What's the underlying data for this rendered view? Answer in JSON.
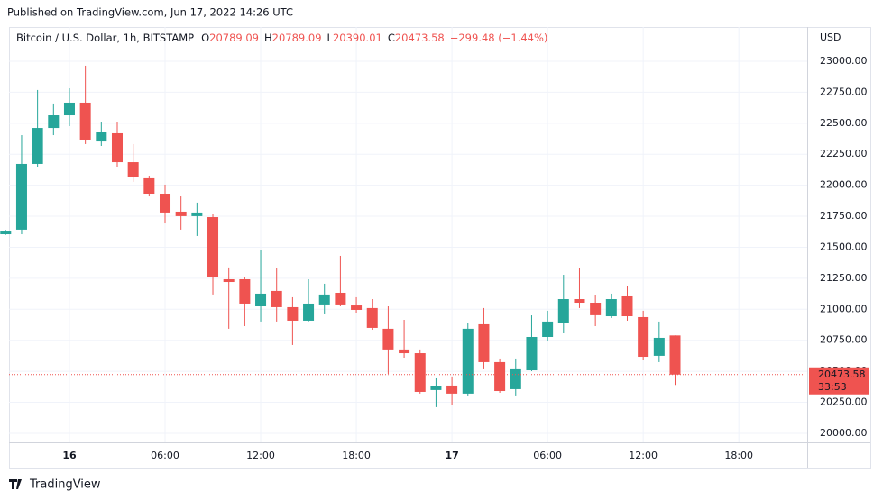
{
  "published": "Published on TradingView.com, Jun 17, 2022 14:26 UTC",
  "brand": "TradingView",
  "chart_data": {
    "type": "candlestick",
    "title": "Bitcoin / U.S. Dollar, 1h, BITSTAMP",
    "header": {
      "o_label": "O",
      "open": "20789.09",
      "h_label": "H",
      "high": "20789.09",
      "l_label": "L",
      "low": "20390.01",
      "c_label": "C",
      "close": "20473.58",
      "change": "−299.48 (−1.44%)"
    },
    "currency": "USD",
    "last_price_label": "20473.58",
    "countdown": "33:53",
    "up_color": "#26a69a",
    "down_color": "#ef5350",
    "x": [
      -4,
      -3,
      -2,
      -1,
      0,
      1,
      2,
      3,
      4,
      5,
      6,
      7,
      8,
      9,
      10,
      11,
      12,
      13,
      14,
      15,
      16,
      17,
      18,
      19,
      20,
      21,
      22,
      23,
      24,
      25,
      26,
      27,
      28,
      29,
      30,
      31,
      32,
      33,
      34,
      35,
      36,
      37,
      38
    ],
    "open": [
      21605,
      21642,
      22172,
      22462,
      22564,
      22666,
      22353,
      22419,
      22186,
      22056,
      21932,
      21787,
      21751,
      21743,
      21242,
      21242,
      21024,
      21148,
      21017,
      20908,
      21039,
      21133,
      21031,
      21010,
      20843,
      20676,
      20646,
      20349,
      20385,
      20320,
      20879,
      20574,
      20356,
      20508,
      20777,
      20886,
      21082,
      21053,
      20944,
      21104,
      20937,
      20625,
      20789.09
    ],
    "high": [
      21640,
      22404,
      22768,
      22659,
      22782,
      22964,
      22513,
      22513,
      22332,
      22077,
      22005,
      21910,
      21860,
      21772,
      21337,
      21257,
      21475,
      21329,
      21097,
      21242,
      21206,
      21431,
      21097,
      21082,
      21024,
      20915,
      20676,
      20443,
      20458,
      20893,
      21010,
      20603,
      20603,
      20951,
      20988,
      21278,
      21329,
      21111,
      21126,
      21184,
      20988,
      20901,
      20789.09
    ],
    "low": [
      21600,
      21605,
      22150,
      22404,
      22477,
      22332,
      22317,
      22150,
      22027,
      21910,
      21692,
      21642,
      21591,
      21119,
      20843,
      20864,
      20901,
      20901,
      20712,
      20901,
      20966,
      21024,
      20973,
      20835,
      20479,
      20610,
      20320,
      20211,
      20225,
      20298,
      20516,
      20327,
      20298,
      20501,
      20748,
      20806,
      21010,
      20864,
      20930,
      20908,
      20588,
      20574,
      20390.01
    ],
    "close": [
      21634,
      22172,
      22462,
      22564,
      22666,
      22368,
      22426,
      22186,
      22070,
      21932,
      21780,
      21751,
      21780,
      21257,
      21220,
      21046,
      21126,
      21017,
      20908,
      21046,
      21119,
      21039,
      20995,
      20850,
      20676,
      20646,
      20334,
      20378,
      20320,
      20843,
      20574,
      20341,
      20516,
      20777,
      20901,
      21082,
      21053,
      20952,
      21082,
      20944,
      20617,
      20770,
      20473.58
    ],
    "xlim": [
      -3.79,
      46.29
    ],
    "xticks": [
      {
        "value": 0,
        "label": "16"
      },
      {
        "value": 6,
        "label": "06:00"
      },
      {
        "value": 12,
        "label": "12:00"
      },
      {
        "value": 18,
        "label": "18:00"
      },
      {
        "value": 24,
        "label": "17"
      },
      {
        "value": 30,
        "label": "06:00"
      },
      {
        "value": 36,
        "label": "12:00"
      },
      {
        "value": 42,
        "label": "18:00"
      }
    ],
    "ylim": [
      19927,
      23276
    ],
    "yticks": [
      {
        "value": 20000,
        "label": "20000.00"
      },
      {
        "value": 20250,
        "label": "20250.00"
      },
      {
        "value": 20500,
        "label": "20500.00"
      },
      {
        "value": 20750,
        "label": "20750.00"
      },
      {
        "value": 21000,
        "label": "21000.00"
      },
      {
        "value": 21250,
        "label": "21250.00"
      },
      {
        "value": 21500,
        "label": "21500.00"
      },
      {
        "value": 21750,
        "label": "21750.00"
      },
      {
        "value": 22000,
        "label": "22000.00"
      },
      {
        "value": 22250,
        "label": "22250.00"
      },
      {
        "value": 22500,
        "label": "22500.00"
      },
      {
        "value": 22750,
        "label": "22750.00"
      },
      {
        "value": 23000,
        "label": "23000.00"
      }
    ],
    "grid": true
  }
}
